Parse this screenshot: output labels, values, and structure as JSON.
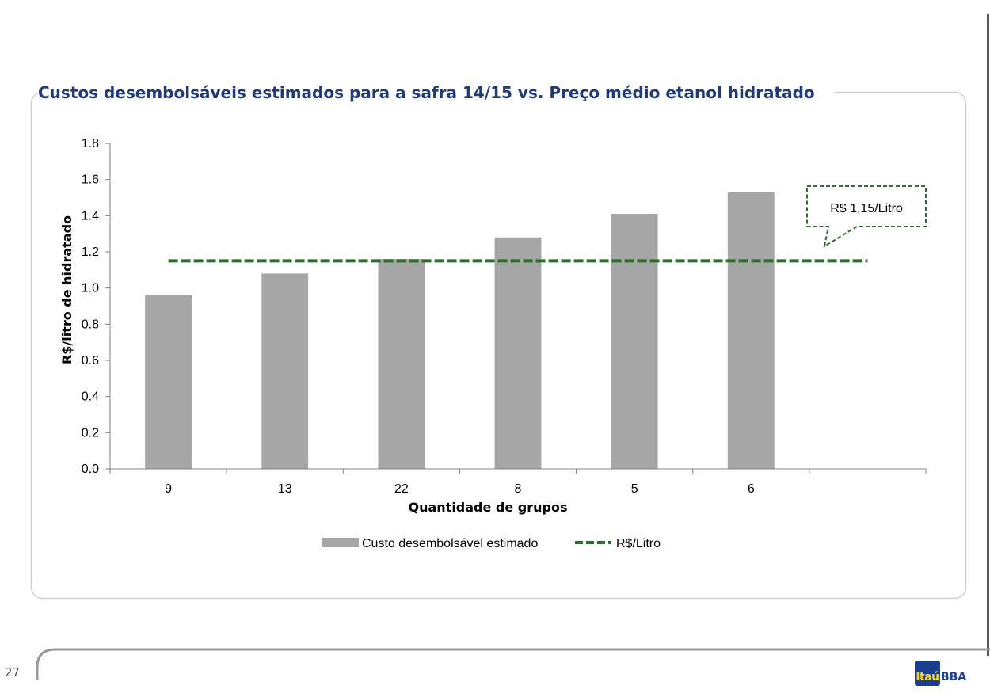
{
  "page": {
    "number": "27"
  },
  "logo": {
    "box_text": "Itaú",
    "side_text": "BBA",
    "brand_color": "#1a3d8f",
    "accent_color": "#ffd700"
  },
  "chart_data": {
    "type": "bar",
    "title": "Custos desembolsáveis estimados para a safra 14/15 vs. Preço médio etanol hidratado",
    "xlabel": "Quantidade de grupos",
    "ylabel": "R$/litro de hidratado",
    "ylim": [
      0,
      1.8
    ],
    "yticks": [
      "0.0",
      "0.2",
      "0.4",
      "0.6",
      "0.8",
      "1.0",
      "1.2",
      "1.4",
      "1.6",
      "1.8"
    ],
    "categories": [
      "9",
      "13",
      "22",
      "8",
      "5",
      "6",
      ""
    ],
    "series": [
      {
        "name": "Custo desembolsável estimado",
        "kind": "bar",
        "color": "#a6a6a6",
        "values": [
          0.96,
          1.08,
          1.16,
          1.28,
          1.41,
          1.53,
          null
        ]
      },
      {
        "name": "R$/Litro",
        "kind": "line",
        "style": "dashed",
        "color": "#2e6b2e",
        "values": [
          1.15,
          1.15,
          1.15,
          1.15,
          1.15,
          1.15,
          1.15
        ]
      }
    ],
    "annotation": {
      "text": "R$ 1,15/Litro",
      "color": "#2e6b2e"
    },
    "legend_position": "bottom",
    "grid": false
  }
}
